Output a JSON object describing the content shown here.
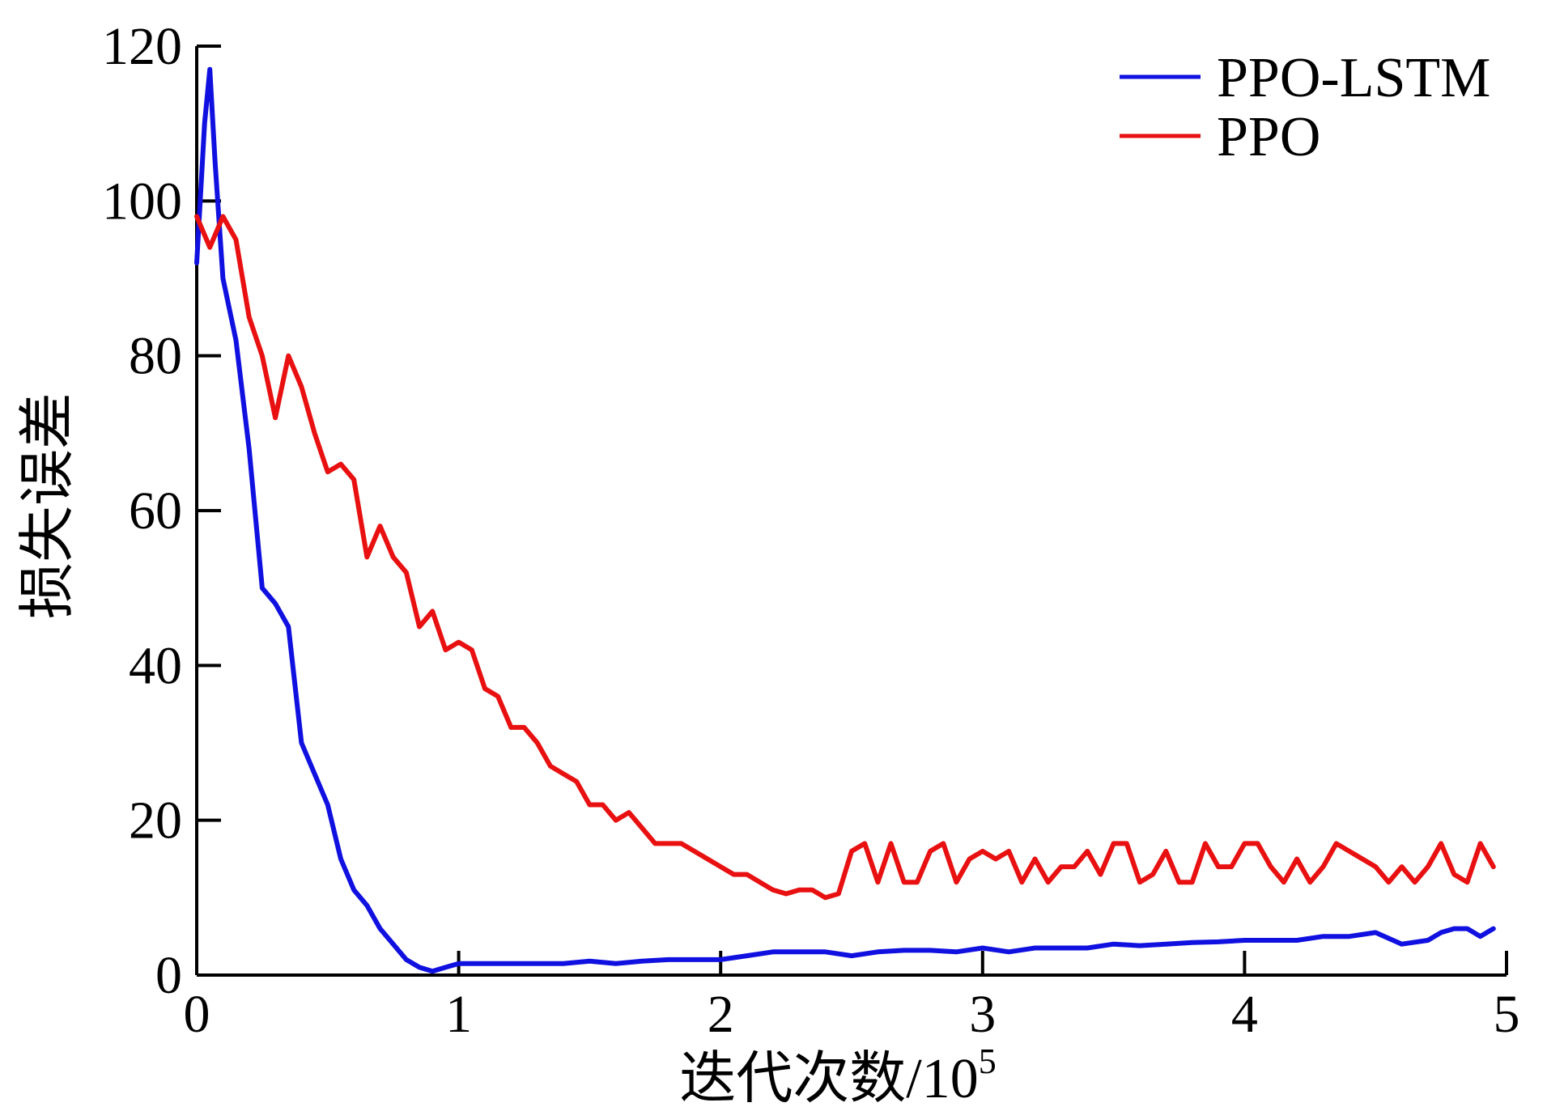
{
  "chart_data": {
    "type": "line",
    "xlabel": "迭代次数/10",
    "xlabel_superscript": "5",
    "ylabel": "损失误差",
    "xlim": [
      0,
      5
    ],
    "ylim": [
      0,
      120
    ],
    "x_ticks": [
      0,
      1,
      2,
      3,
      4,
      5
    ],
    "y_ticks": [
      0,
      20,
      40,
      60,
      80,
      100,
      120
    ],
    "legend_position": "top-right",
    "grid": false,
    "series": [
      {
        "name": "PPO-LSTM",
        "color": "#1010e0",
        "x": [
          0,
          0.03,
          0.05,
          0.07,
          0.1,
          0.15,
          0.2,
          0.25,
          0.3,
          0.35,
          0.4,
          0.45,
          0.5,
          0.55,
          0.6,
          0.65,
          0.7,
          0.75,
          0.8,
          0.85,
          0.9,
          0.95,
          1.0,
          1.1,
          1.2,
          1.3,
          1.4,
          1.5,
          1.6,
          1.7,
          1.8,
          1.9,
          2.0,
          2.1,
          2.2,
          2.3,
          2.4,
          2.5,
          2.6,
          2.7,
          2.8,
          2.9,
          3.0,
          3.1,
          3.2,
          3.3,
          3.4,
          3.5,
          3.6,
          3.7,
          3.8,
          3.9,
          4.0,
          4.1,
          4.2,
          4.3,
          4.4,
          4.5,
          4.6,
          4.7,
          4.75,
          4.8,
          4.85,
          4.9,
          4.95
        ],
        "values": [
          92,
          110,
          117,
          105,
          90,
          82,
          68,
          50,
          48,
          45,
          30,
          26,
          22,
          15,
          11,
          9,
          6,
          4,
          2,
          1,
          0.5,
          1,
          1.5,
          1.5,
          1.5,
          1.5,
          1.5,
          1.8,
          1.5,
          1.8,
          2,
          2,
          2,
          2.5,
          3,
          3,
          3,
          2.5,
          3,
          3.2,
          3.2,
          3,
          3.5,
          3,
          3.5,
          3.5,
          3.5,
          4,
          3.8,
          4,
          4.2,
          4.3,
          4.5,
          4.5,
          4.5,
          5,
          5,
          5.5,
          4,
          4.5,
          5.5,
          6,
          6,
          5,
          6
        ]
      },
      {
        "name": "PPO",
        "color": "#e81010",
        "x": [
          0,
          0.05,
          0.1,
          0.15,
          0.2,
          0.25,
          0.3,
          0.35,
          0.4,
          0.45,
          0.5,
          0.55,
          0.6,
          0.65,
          0.7,
          0.75,
          0.8,
          0.85,
          0.9,
          0.95,
          1.0,
          1.05,
          1.1,
          1.15,
          1.2,
          1.25,
          1.3,
          1.35,
          1.4,
          1.45,
          1.5,
          1.55,
          1.6,
          1.65,
          1.7,
          1.75,
          1.8,
          1.85,
          1.9,
          1.95,
          2.0,
          2.05,
          2.1,
          2.15,
          2.2,
          2.25,
          2.3,
          2.35,
          2.4,
          2.45,
          2.5,
          2.55,
          2.6,
          2.65,
          2.7,
          2.75,
          2.8,
          2.85,
          2.9,
          2.95,
          3.0,
          3.05,
          3.1,
          3.15,
          3.2,
          3.25,
          3.3,
          3.35,
          3.4,
          3.45,
          3.5,
          3.55,
          3.6,
          3.65,
          3.7,
          3.75,
          3.8,
          3.85,
          3.9,
          3.95,
          4.0,
          4.05,
          4.1,
          4.15,
          4.2,
          4.25,
          4.3,
          4.35,
          4.4,
          4.45,
          4.5,
          4.55,
          4.6,
          4.65,
          4.7,
          4.75,
          4.8,
          4.85,
          4.9,
          4.95
        ],
        "values": [
          98,
          94,
          98,
          95,
          85,
          80,
          72,
          80,
          76,
          70,
          65,
          66,
          64,
          54,
          58,
          54,
          52,
          45,
          47,
          42,
          43,
          42,
          37,
          36,
          32,
          32,
          30,
          27,
          26,
          25,
          22,
          22,
          20,
          21,
          19,
          17,
          17,
          17,
          16,
          15,
          14,
          13,
          13,
          12,
          11,
          10.5,
          11,
          11,
          10,
          10.5,
          16,
          17,
          12,
          17,
          12,
          12,
          16,
          17,
          12,
          15,
          16,
          15,
          16,
          12,
          15,
          12,
          14,
          14,
          16,
          13,
          17,
          17,
          12,
          13,
          16,
          12,
          12,
          17,
          14,
          14,
          17,
          17,
          14,
          12,
          15,
          12,
          14,
          17,
          16,
          15,
          14,
          12,
          14,
          12,
          14,
          17,
          13,
          12,
          17,
          14
        ]
      }
    ]
  }
}
